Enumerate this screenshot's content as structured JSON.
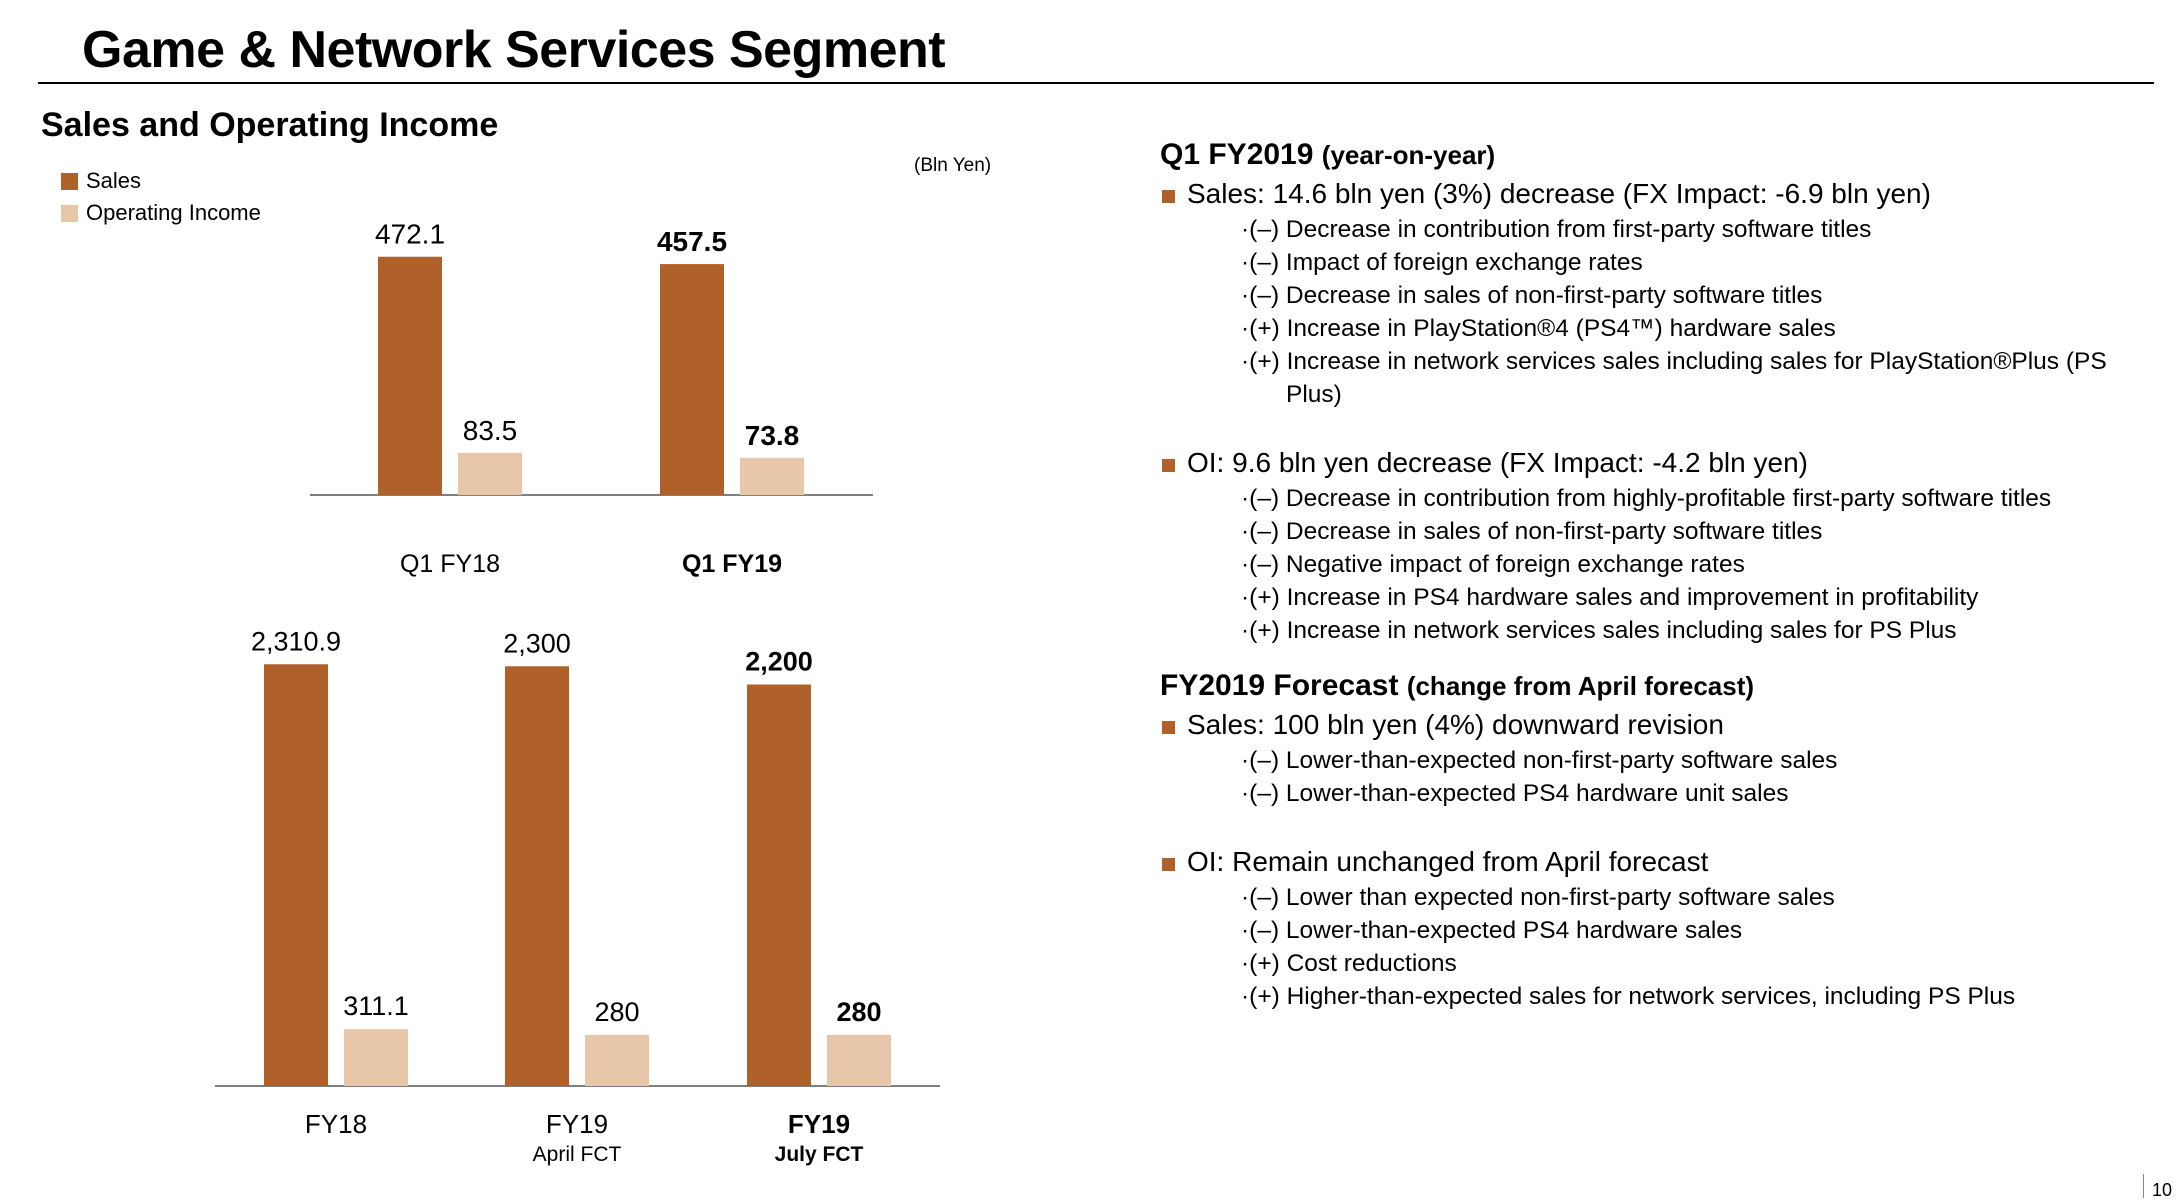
{
  "page": {
    "title": "Game & Network Services Segment",
    "page_number": "10"
  },
  "section_title": "Sales and Operating Income",
  "unit_label": "(Bln Yen)",
  "colors": {
    "sales": "#b0612a",
    "operating_income": "#e8c6aa",
    "bullet": "#b0612a"
  },
  "legend": [
    {
      "label": "Sales",
      "color": "#b0612a"
    },
    {
      "label": "Operating Income",
      "color": "#e8c6aa"
    }
  ],
  "chart_data": [
    {
      "type": "bar",
      "categories": [
        "Q1 FY18",
        "Q1 FY19"
      ],
      "category_bold": [
        false,
        true
      ],
      "series": [
        {
          "name": "Sales",
          "values": [
            472.1,
            457.5
          ],
          "labels": [
            "472.1",
            "457.5"
          ]
        },
        {
          "name": "Operating Income",
          "values": [
            83.5,
            73.8
          ],
          "labels": [
            "83.5",
            "73.8"
          ]
        }
      ],
      "unit": "(Bln Yen)"
    },
    {
      "type": "bar",
      "categories": [
        "FY18",
        "FY19",
        "FY19"
      ],
      "category_sublabels": [
        "",
        "April FCT",
        "July FCT"
      ],
      "category_bold": [
        false,
        false,
        true
      ],
      "series": [
        {
          "name": "Sales",
          "values": [
            2310.9,
            2300,
            2200
          ],
          "labels": [
            "2,310.9",
            "2,300",
            "2,200"
          ]
        },
        {
          "name": "Operating Income",
          "values": [
            311.1,
            280,
            280
          ],
          "labels": [
            "311.1",
            "280",
            "280"
          ]
        }
      ],
      "unit": "(Bln Yen)"
    }
  ],
  "commentary": {
    "q1": {
      "heading": "Q1 FY2019",
      "subheading": "(year-on-year)",
      "sales": {
        "text": "Sales: 14.6 bln yen (3%) decrease (FX Impact:  -6.9 bln yen)",
        "items": [
          "·(–) Decrease in contribution from first-party software titles",
          "·(–) Impact of foreign exchange rates",
          "·(–) Decrease in sales of non-first-party software titles",
          "·(+) Increase in PlayStation®4 (PS4™) hardware sales",
          "·(+) Increase in network services sales including sales for PlayStation®Plus (PS Plus)"
        ]
      },
      "oi": {
        "text": "OI: 9.6 bln yen decrease (FX Impact:  -4.2 bln yen)",
        "items": [
          "·(–) Decrease in contribution from highly-profitable first-party software titles",
          "·(–) Decrease in sales of non-first-party software titles",
          "·(–) Negative impact of foreign exchange rates",
          "·(+) Increase in PS4 hardware sales and improvement in profitability",
          "·(+) Increase in network services sales including sales for PS Plus"
        ]
      }
    },
    "forecast": {
      "heading": "FY2019 Forecast",
      "subheading": "(change from April forecast)",
      "sales": {
        "text": "Sales: 100 bln yen (4%) downward revision",
        "items": [
          "·(–) Lower-than-expected non-first-party software sales",
          "·(–) Lower-than-expected PS4 hardware unit sales"
        ]
      },
      "oi": {
        "text": "OI: Remain unchanged from April forecast",
        "items": [
          "·(–) Lower than expected non-first-party software sales",
          "·(–) Lower-than-expected PS4 hardware sales",
          "·(+) Cost reductions",
          "·(+) Higher-than-expected sales for network services, including PS Plus"
        ]
      }
    }
  }
}
